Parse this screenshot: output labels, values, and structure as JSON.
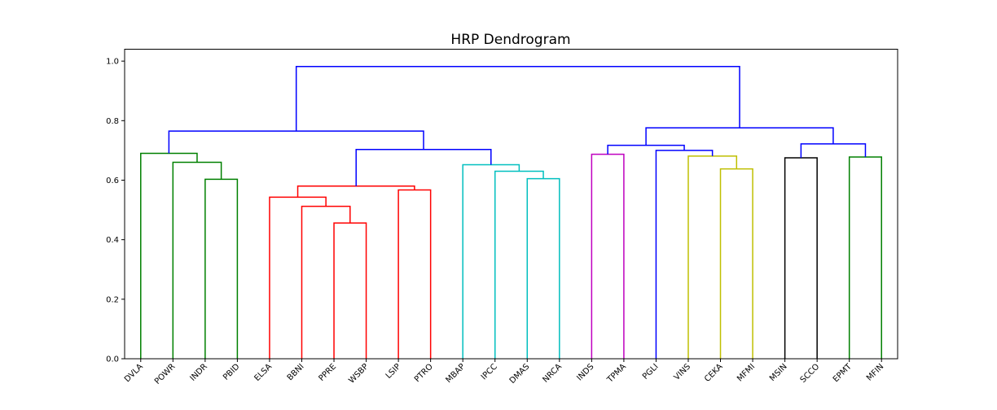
{
  "chart_data": {
    "type": "dendrogram",
    "title": "HRP Dendrogram",
    "xlabel": "",
    "ylabel": "",
    "ylim": [
      0,
      1.04
    ],
    "y_ticks": [
      "0.0",
      "0.2",
      "0.4",
      "0.6",
      "0.8",
      "1.0"
    ],
    "y_tick_values": [
      0.0,
      0.2,
      0.4,
      0.6,
      0.8,
      1.0
    ],
    "grid": false,
    "leaves": [
      "DVLA",
      "POWR",
      "INDR",
      "PBID",
      "ELSA",
      "BBNI",
      "PPRE",
      "WSBP",
      "LSIP",
      "PTRO",
      "MBAP",
      "IPCC",
      "DMAS",
      "NRCA",
      "INDS",
      "TPMA",
      "PGLI",
      "VINS",
      "CEKA",
      "MFMI",
      "MSIN",
      "SCCO",
      "EPMT",
      "MFIN"
    ],
    "colors": {
      "green": "#008000",
      "red": "#ff0000",
      "cyan": "#00bfbf",
      "magenta": "#bf00bf",
      "olive": "#bfbf00",
      "black": "#000000",
      "blue": "#0000ff"
    },
    "merges": [
      {
        "left": "INDR",
        "right": "PBID",
        "height": 0.603,
        "color": "green"
      },
      {
        "left": "POWR",
        "right": "c0",
        "height": 0.66,
        "color": "green"
      },
      {
        "left": "DVLA",
        "right": "c1",
        "height": 0.69,
        "color": "green"
      },
      {
        "left": "PPRE",
        "right": "WSBP",
        "height": 0.456,
        "color": "red"
      },
      {
        "left": "BBNI",
        "right": "c3",
        "height": 0.512,
        "color": "red"
      },
      {
        "left": "ELSA",
        "right": "c4",
        "height": 0.543,
        "color": "red"
      },
      {
        "left": "LSIP",
        "right": "PTRO",
        "height": 0.567,
        "color": "red"
      },
      {
        "left": "c5",
        "right": "c6",
        "height": 0.58,
        "color": "red"
      },
      {
        "left": "DMAS",
        "right": "NRCA",
        "height": 0.605,
        "color": "cyan"
      },
      {
        "left": "IPCC",
        "right": "c8",
        "height": 0.63,
        "color": "cyan"
      },
      {
        "left": "MBAP",
        "right": "c9",
        "height": 0.652,
        "color": "cyan"
      },
      {
        "left": "c7",
        "right": "c10",
        "height": 0.703,
        "color": "blue"
      },
      {
        "left": "c2",
        "right": "c11",
        "height": 0.765,
        "color": "blue"
      },
      {
        "left": "INDS",
        "right": "TPMA",
        "height": 0.687,
        "color": "magenta"
      },
      {
        "left": "CEKA",
        "right": "MFMI",
        "height": 0.638,
        "color": "olive"
      },
      {
        "left": "VINS",
        "right": "c14",
        "height": 0.681,
        "color": "olive"
      },
      {
        "left": "PGLI",
        "right": "c15",
        "height": 0.7,
        "color": "blue"
      },
      {
        "left": "c13",
        "right": "c16",
        "height": 0.717,
        "color": "blue"
      },
      {
        "left": "MSIN",
        "right": "SCCO",
        "height": 0.675,
        "color": "black"
      },
      {
        "left": "EPMT",
        "right": "MFIN",
        "height": 0.678,
        "color": "green"
      },
      {
        "left": "c18",
        "right": "c19",
        "height": 0.722,
        "color": "blue"
      },
      {
        "left": "c17",
        "right": "c20",
        "height": 0.776,
        "color": "blue"
      },
      {
        "left": "c12",
        "right": "c21",
        "height": 0.982,
        "color": "blue"
      }
    ]
  }
}
